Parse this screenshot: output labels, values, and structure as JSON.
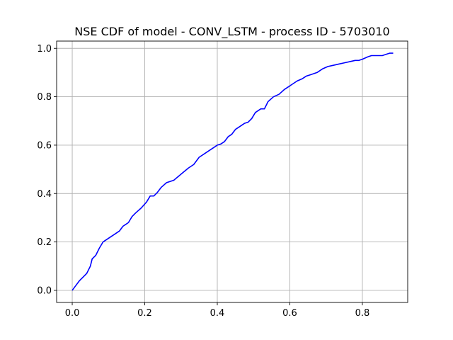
{
  "chart_data": {
    "type": "line",
    "title": "NSE CDF of model - CONV_LSTM - process ID - 5703010",
    "xlabel": "",
    "ylabel": "",
    "xlim": [
      -0.043,
      0.925
    ],
    "ylim": [
      -0.05,
      1.03
    ],
    "grid": true,
    "x_ticks": [
      0.0,
      0.2,
      0.4,
      0.6,
      0.8
    ],
    "x_tick_labels": [
      "0.0",
      "0.2",
      "0.4",
      "0.6",
      "0.8"
    ],
    "y_ticks": [
      0.0,
      0.2,
      0.4,
      0.6,
      0.8,
      1.0
    ],
    "y_tick_labels": [
      "0.0",
      "0.2",
      "0.4",
      "0.6",
      "0.8",
      "1.0"
    ],
    "series": [
      {
        "color": "#0000ff",
        "x": [
          0.0,
          0.01,
          0.02,
          0.03,
          0.04,
          0.05,
          0.055,
          0.065,
          0.075,
          0.085,
          0.1,
          0.115,
          0.13,
          0.14,
          0.145,
          0.155,
          0.165,
          0.175,
          0.19,
          0.205,
          0.215,
          0.225,
          0.235,
          0.245,
          0.26,
          0.28,
          0.3,
          0.32,
          0.335,
          0.35,
          0.37,
          0.385,
          0.4,
          0.41,
          0.42,
          0.43,
          0.44,
          0.45,
          0.46,
          0.475,
          0.485,
          0.495,
          0.505,
          0.52,
          0.53,
          0.54,
          0.555,
          0.57,
          0.585,
          0.595,
          0.605,
          0.62,
          0.635,
          0.645,
          0.655,
          0.665,
          0.675,
          0.69,
          0.705,
          0.72,
          0.735,
          0.75,
          0.765,
          0.78,
          0.79,
          0.8,
          0.815,
          0.825,
          0.84,
          0.855,
          0.865,
          0.875,
          0.885
        ],
        "y": [
          0.0,
          0.02,
          0.04,
          0.055,
          0.07,
          0.1,
          0.13,
          0.145,
          0.175,
          0.2,
          0.215,
          0.23,
          0.245,
          0.265,
          0.27,
          0.28,
          0.305,
          0.32,
          0.34,
          0.365,
          0.39,
          0.39,
          0.405,
          0.425,
          0.445,
          0.455,
          0.48,
          0.505,
          0.52,
          0.55,
          0.57,
          0.585,
          0.6,
          0.605,
          0.615,
          0.635,
          0.645,
          0.665,
          0.675,
          0.69,
          0.695,
          0.71,
          0.735,
          0.75,
          0.75,
          0.78,
          0.8,
          0.81,
          0.83,
          0.84,
          0.85,
          0.865,
          0.875,
          0.885,
          0.89,
          0.895,
          0.9,
          0.915,
          0.925,
          0.93,
          0.935,
          0.94,
          0.945,
          0.95,
          0.95,
          0.955,
          0.965,
          0.97,
          0.97,
          0.97,
          0.975,
          0.98,
          0.98
        ]
      }
    ]
  }
}
